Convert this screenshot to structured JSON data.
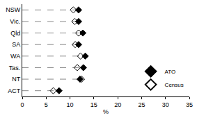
{
  "chart_data": {
    "type": "scatter",
    "orientation": "horizontal",
    "categories": [
      "NSW",
      "Vic.",
      "Qld",
      "SA",
      "WA",
      "Tas.",
      "NT",
      "ACT"
    ],
    "series": [
      {
        "name": "ATO",
        "color": "#000000",
        "marker": "diamond",
        "values": [
          11.8,
          11.8,
          12.7,
          11.8,
          13.2,
          12.8,
          12.1,
          7.7
        ]
      },
      {
        "name": "Census",
        "color": "#000000",
        "marker": "diamond-open",
        "values": [
          10.7,
          11.0,
          11.8,
          11.1,
          12.2,
          11.5,
          12.4,
          6.5
        ]
      }
    ],
    "x_label": "%",
    "xlim": [
      0,
      35
    ],
    "xticks": [
      0,
      5,
      10,
      15,
      20,
      25,
      30,
      35
    ],
    "grid": false,
    "legend": "lower right"
  }
}
